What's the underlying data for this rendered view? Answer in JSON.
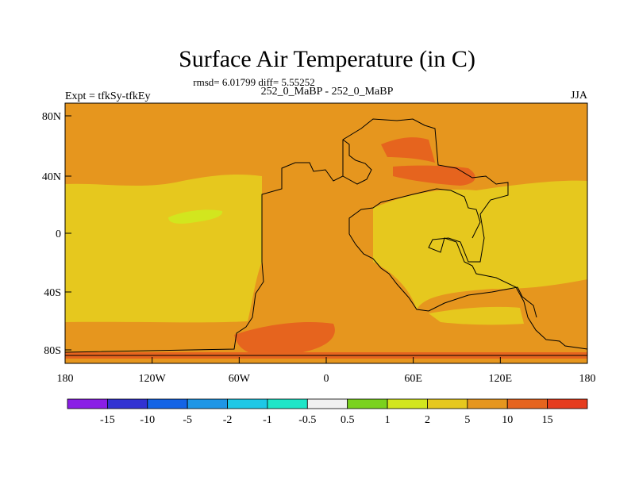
{
  "title": "Surface Air Temperature (in C)",
  "stats_line": "rmsd= 6.01799 diff= 5.55252",
  "experiment_label": "Expt = tfkSy-tfkEy",
  "comparison_label": "252_0_MaBP - 252_0_MaBP",
  "season_label": "JJA",
  "y_ticks": [
    "80N",
    "40N",
    "0",
    "40S",
    "80S"
  ],
  "x_ticks": [
    "180",
    "120W",
    "60W",
    "0",
    "60E",
    "120E",
    "180"
  ],
  "colorbar": {
    "labels": [
      "-15",
      "-10",
      "-5",
      "-2",
      "-1",
      "-0.5",
      "0.5",
      "1",
      "2",
      "5",
      "10",
      "15"
    ],
    "colors": [
      "#8a1ee6",
      "#3232d2",
      "#1464e6",
      "#1e96e6",
      "#1ec8e6",
      "#1ee6c8",
      "#f0f0f0",
      "#7ad21e",
      "#d2e61e",
      "#e6c81e",
      "#e6961e",
      "#e6641e",
      "#e63c1e"
    ]
  },
  "map_colors": {
    "band_5_10": "#e6961e",
    "band_2_5": "#e6c81e",
    "band_1_2": "#d2e61e",
    "band_10_15": "#e6641e"
  }
}
